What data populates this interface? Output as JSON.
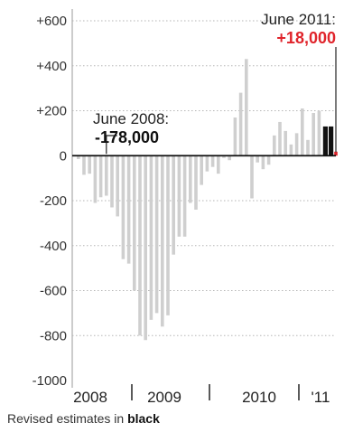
{
  "chart_data": {
    "type": "bar",
    "title": "",
    "xlabel": "",
    "ylabel": "",
    "ylim": [
      -1000,
      600
    ],
    "y_ticks": [
      {
        "value": 600,
        "label": "+600"
      },
      {
        "value": 400,
        "label": "+400"
      },
      {
        "value": 200,
        "label": "+200"
      },
      {
        "value": 0,
        "label": "0"
      },
      {
        "value": -200,
        "label": "-200"
      },
      {
        "value": -400,
        "label": "-400"
      },
      {
        "value": -600,
        "label": "-600"
      },
      {
        "value": -800,
        "label": "-800"
      },
      {
        "value": -1000,
        "label": "-1000"
      }
    ],
    "x_ticks": [
      "2008",
      "2009",
      "2010",
      "'11"
    ],
    "grid": true,
    "colors": {
      "monthly": "#cfcfcf",
      "revised": "#111111",
      "latest": "#e0242b"
    },
    "series": [
      {
        "kind": "monthly",
        "values": [
          -15,
          -85,
          -80,
          -210,
          -185,
          -178,
          -230,
          -270,
          -460,
          -480,
          -600,
          -800,
          -820,
          -730,
          -700,
          -760,
          -710,
          -440,
          -360,
          -360,
          -210,
          -240,
          -130,
          -70,
          -50,
          -80,
          -10,
          -20,
          170,
          280,
          430,
          -190,
          -30,
          -60,
          -40,
          90,
          150,
          110,
          50,
          100,
          210,
          70,
          190,
          200
        ]
      },
      {
        "kind": "revised",
        "values": [
          130,
          130
        ]
      },
      {
        "kind": "latest",
        "values": [
          18
        ]
      }
    ],
    "annotations": [
      {
        "label": "June 2008:",
        "value": "-178,000"
      },
      {
        "label": "June 2011:",
        "value": "+18,000"
      }
    ]
  },
  "footnote": {
    "prefix": "Revised estimates in ",
    "bold": "black"
  }
}
